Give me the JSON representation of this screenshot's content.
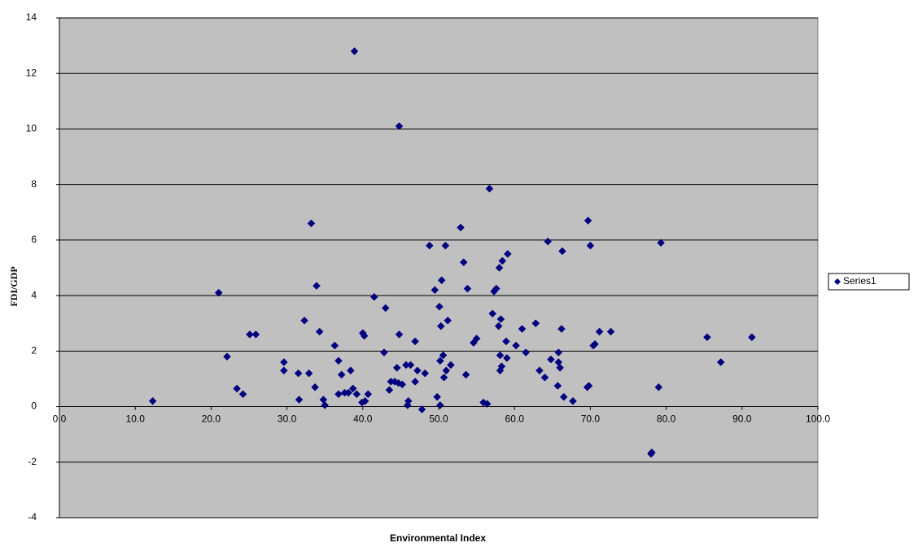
{
  "chart_data": {
    "type": "scatter",
    "x_label": "Environmental Index",
    "y_label": "FDI/GDP",
    "xlim": [
      0,
      100
    ],
    "xticks": [
      {
        "value": 0,
        "label": "0.0"
      },
      {
        "value": 10,
        "label": "10.0"
      },
      {
        "value": 20,
        "label": "20.0"
      },
      {
        "value": 30,
        "label": "30.0"
      },
      {
        "value": 40,
        "label": "40.0"
      },
      {
        "value": 50,
        "label": "50.0"
      },
      {
        "value": 60,
        "label": "60.0"
      },
      {
        "value": 70,
        "label": "70.0"
      },
      {
        "value": 80,
        "label": "80.0"
      },
      {
        "value": 90,
        "label": "90.0"
      },
      {
        "value": 100,
        "label": "100.0"
      }
    ],
    "ylim": [
      -4,
      14
    ],
    "yticks": [
      -4,
      -2,
      0,
      2,
      4,
      6,
      8,
      10,
      12,
      14
    ],
    "grid": true,
    "legend": "right",
    "series": [
      {
        "name": "Series1",
        "color": "#000080",
        "x": [
          12.3,
          21.0,
          22.1,
          23.4,
          24.2,
          25.1,
          25.9,
          29.6,
          29.6,
          31.5,
          31.6,
          32.3,
          32.9,
          33.2,
          33.7,
          33.9,
          34.3,
          34.8,
          35.0,
          36.3,
          36.8,
          36.8,
          37.2,
          37.6,
          38.1,
          38.4,
          38.7,
          38.9,
          39.2,
          39.9,
          40.0,
          40.2,
          40.3,
          40.7,
          41.5,
          42.8,
          43.0,
          43.5,
          43.7,
          44.2,
          44.5,
          44.7,
          44.8,
          44.8,
          45.2,
          45.7,
          45.9,
          46.0,
          46.3,
          46.9,
          46.9,
          47.2,
          47.8,
          48.2,
          48.8,
          49.5,
          49.8,
          50.1,
          50.2,
          50.2,
          50.3,
          50.4,
          50.6,
          50.7,
          50.9,
          51.0,
          51.2,
          51.6,
          52.9,
          53.3,
          53.6,
          53.8,
          54.6,
          55.0,
          55.9,
          56.4,
          56.7,
          57.1,
          57.3,
          57.6,
          57.9,
          58.0,
          58.1,
          58.1,
          58.2,
          58.3,
          58.4,
          58.9,
          59.0,
          59.1,
          60.2,
          61.0,
          61.5,
          62.8,
          63.3,
          64.0,
          64.4,
          64.8,
          65.7,
          65.8,
          65.8,
          66.0,
          66.2,
          66.3,
          66.5,
          67.7,
          69.6,
          69.7,
          69.8,
          70.0,
          70.4,
          70.6,
          71.2,
          72.7,
          78.0,
          78.1,
          79.0,
          79.3,
          85.4,
          87.2,
          91.3
        ],
        "values": [
          0.2,
          4.1,
          1.8,
          0.65,
          0.45,
          2.6,
          2.6,
          1.6,
          1.3,
          1.2,
          0.25,
          3.1,
          1.2,
          6.6,
          0.7,
          4.35,
          2.7,
          0.25,
          0.05,
          2.2,
          1.65,
          0.45,
          1.15,
          0.5,
          0.5,
          1.3,
          0.65,
          12.8,
          0.45,
          0.15,
          2.65,
          2.55,
          0.2,
          0.45,
          3.95,
          1.95,
          3.55,
          0.6,
          0.9,
          0.9,
          1.4,
          0.85,
          2.6,
          10.1,
          0.8,
          1.5,
          0.05,
          0.2,
          1.5,
          0.9,
          2.35,
          1.3,
          -0.1,
          1.2,
          5.8,
          4.2,
          0.35,
          3.6,
          1.65,
          0.05,
          2.9,
          4.55,
          1.85,
          1.05,
          5.8,
          1.3,
          3.1,
          1.5,
          6.45,
          5.2,
          1.15,
          4.25,
          2.3,
          2.45,
          0.15,
          0.1,
          7.85,
          3.35,
          4.15,
          4.25,
          2.9,
          5.0,
          1.85,
          1.3,
          3.15,
          1.45,
          5.25,
          2.35,
          1.75,
          5.5,
          2.2,
          2.8,
          1.95,
          3.0,
          1.3,
          1.05,
          5.95,
          1.7,
          0.75,
          1.95,
          1.6,
          1.4,
          2.8,
          5.6,
          0.35,
          0.2,
          0.7,
          6.7,
          0.75,
          5.8,
          2.2,
          2.25,
          2.7,
          2.7,
          -1.7,
          -1.65,
          0.7,
          5.9,
          2.5,
          1.6,
          2.5
        ]
      }
    ]
  }
}
